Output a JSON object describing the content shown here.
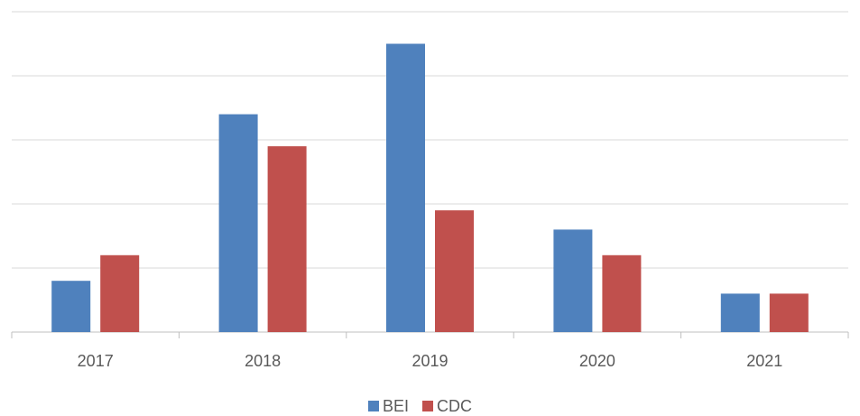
{
  "chart_data": {
    "type": "bar",
    "categories": [
      "2017",
      "2018",
      "2019",
      "2020",
      "2021"
    ],
    "series": [
      {
        "name": "BEI",
        "color": "#4f81bd",
        "values": [
          0.8,
          3.4,
          4.5,
          1.6,
          0.6
        ]
      },
      {
        "name": "CDC",
        "color": "#c0504d",
        "values": [
          1.2,
          2.9,
          1.9,
          1.2,
          0.6
        ]
      }
    ],
    "ylim": [
      0,
      5
    ],
    "yticks": [
      0,
      1,
      2,
      3,
      4,
      5
    ],
    "grid": true,
    "legend": "bottom"
  }
}
